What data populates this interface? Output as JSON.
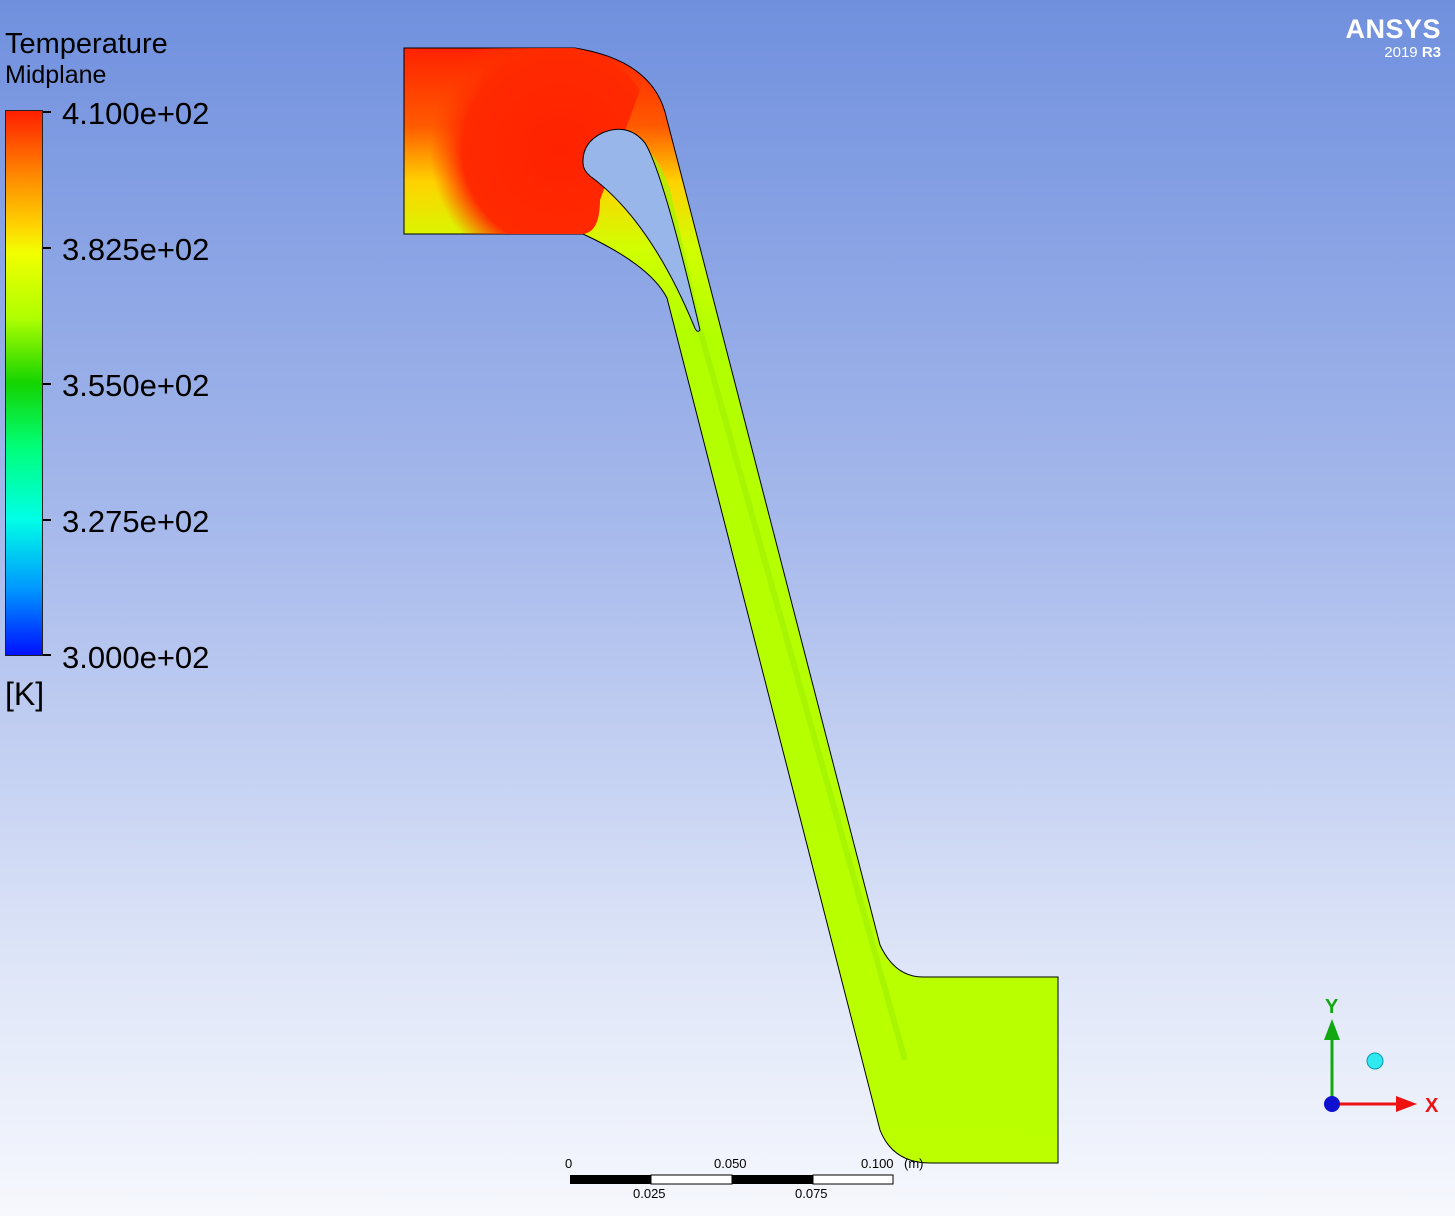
{
  "legend": {
    "title": "Temperature",
    "subtitle": "Midplane",
    "labels": [
      "4.100e+02",
      "3.825e+02",
      "3.550e+02",
      "3.275e+02",
      "3.000e+02"
    ],
    "unit": "[K]"
  },
  "logo": {
    "name": "ANSYS",
    "year": "2019",
    "release": "R3"
  },
  "scale_bar": {
    "top_labels": [
      "0",
      "0.050",
      "0.100"
    ],
    "bottom_labels": [
      "0.025",
      "0.075"
    ],
    "unit": "(m)"
  },
  "triad": {
    "y_label": "Y",
    "x_label": "X"
  },
  "colors": {
    "hot": "#ff2200",
    "mid": "#b8ff00",
    "x_axis": "#ee1111",
    "y_axis": "#11a811",
    "z_axis": "#1010d0"
  }
}
